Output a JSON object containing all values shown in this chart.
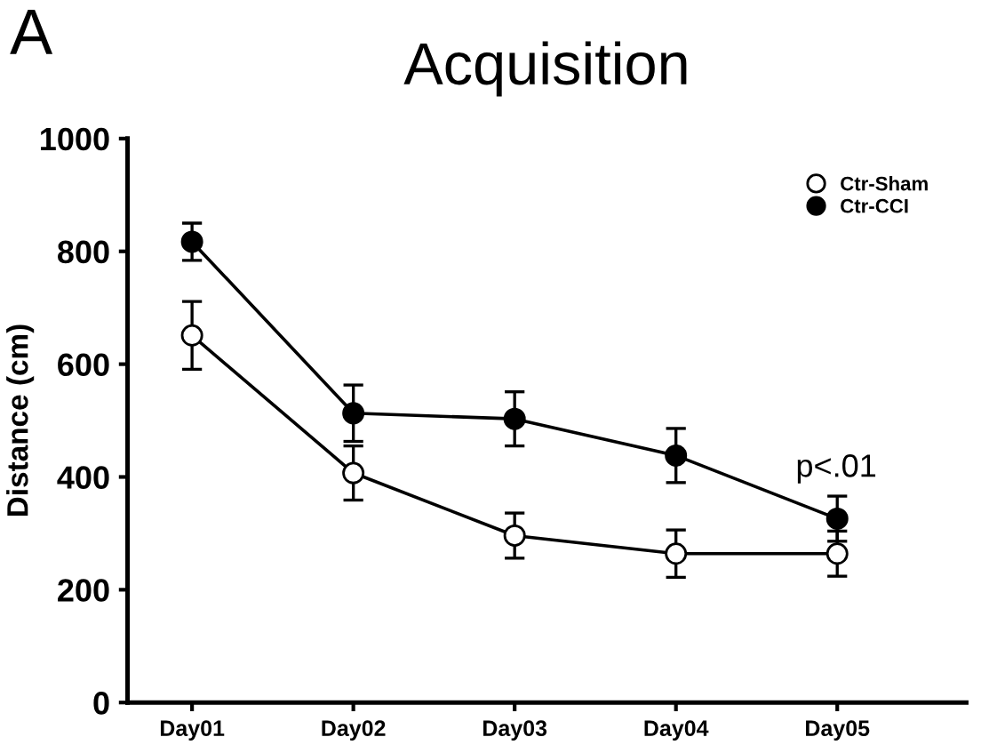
{
  "chart_data": {
    "type": "line",
    "title": "Acquisition",
    "ylabel": "Distance (cm)",
    "categories": [
      "Day01",
      "Day02",
      "Day03",
      "Day04",
      "Day05"
    ],
    "series": [
      {
        "name": "Ctr-Sham",
        "color": "#ffffff",
        "values": [
          651,
          407,
          296,
          264,
          264
        ],
        "errors": [
          60,
          48,
          40,
          42,
          40
        ]
      },
      {
        "name": "Ctr-CCI",
        "color": "#000000",
        "values": [
          817,
          513,
          503,
          438,
          326
        ],
        "errors": [
          33,
          50,
          48,
          48,
          40
        ]
      }
    ],
    "ylim": [
      0,
      1000
    ],
    "yticks": [
      0,
      200,
      400,
      600,
      800,
      1000
    ],
    "grid": false,
    "legend": "top right",
    "marker": "circle",
    "line_style": "solid",
    "annotations": [
      "A",
      "p<.01"
    ]
  }
}
